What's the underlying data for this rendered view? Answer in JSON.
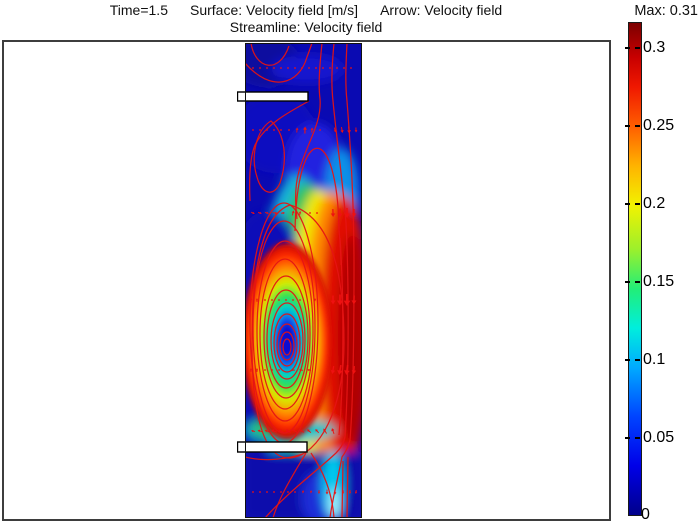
{
  "header": {
    "title_segments": [
      "Time=1.5",
      "Surface: Velocity field [m/s]",
      "Arrow: Velocity field"
    ],
    "title_line2": "Streamline: Velocity field",
    "max_label": "Max: 0.31"
  },
  "colorbar": {
    "labels": [
      "0.3",
      "0.25",
      "0.2",
      "0.15",
      "0.1",
      "0.05",
      "0"
    ],
    "min": 0,
    "max": 0.31,
    "colormap": "jet",
    "top_color": "#7c0000",
    "bottom_color": "#00008a"
  },
  "chart_data": {
    "type": "heatmap",
    "title": "Time=1.5  Surface: Velocity field [m/s]  Arrow: Velocity field  Streamline: Velocity field",
    "quantity": "Velocity field [m/s]",
    "time": 1.5,
    "max_value": 0.31,
    "value_range": [
      0,
      0.31
    ],
    "colorbar_ticks": [
      0,
      0.05,
      0.1,
      0.15,
      0.2,
      0.25,
      0.3
    ],
    "plot_layers": [
      "surface",
      "arrow",
      "streamline"
    ],
    "colormap": "jet",
    "streamline_color": "#e51414",
    "arrow_color": "#ee1111",
    "description": "Vertical channel with two left-wall baffles; jet flows down the right side between baffles reaching ~0.31 m/s (dark red); large counterclockwise recirculation vortex with low-velocity core left of the jet; slow dark-blue flow above top baffle and below bottom baffle.",
    "features": {
      "vortex_core_velocity": "~0 (dark blue core)",
      "jet_peak_velocity": "~0.31 m/s along right wall mid-section",
      "baffle_count": 2
    },
    "arrows": [
      [
        8,
        25,
        0,
        0
      ],
      [
        15,
        25,
        0,
        0
      ],
      [
        22,
        25,
        0,
        0
      ],
      [
        29,
        25,
        0,
        0
      ],
      [
        36,
        25,
        0,
        0
      ],
      [
        43,
        25,
        0,
        0
      ],
      [
        50,
        25,
        0,
        0
      ],
      [
        57,
        25,
        0,
        0
      ],
      [
        64,
        25,
        0,
        0
      ],
      [
        71,
        25,
        0,
        0
      ],
      [
        78,
        25,
        0,
        0
      ],
      [
        85,
        25,
        0,
        0
      ],
      [
        92,
        25,
        0,
        0
      ],
      [
        99,
        25,
        0,
        0
      ],
      [
        106,
        25,
        0,
        0
      ],
      [
        8,
        87,
        0,
        0
      ],
      [
        15,
        87,
        0,
        0
      ],
      [
        22,
        87,
        0,
        0
      ],
      [
        29,
        87,
        0,
        0
      ],
      [
        36,
        87,
        0,
        0
      ],
      [
        44,
        87,
        0,
        0
      ],
      [
        52,
        87,
        -85,
        5
      ],
      [
        60,
        87,
        -88,
        7
      ],
      [
        67,
        87,
        -85,
        5
      ],
      [
        75,
        87,
        0,
        0
      ],
      [
        90,
        87,
        75,
        5
      ],
      [
        97,
        87,
        80,
        6
      ],
      [
        104,
        87,
        85,
        7
      ],
      [
        111,
        87,
        88,
        5
      ],
      [
        8,
        170,
        25,
        4
      ],
      [
        15,
        170,
        20,
        4
      ],
      [
        22,
        170,
        15,
        4
      ],
      [
        30,
        170,
        10,
        5
      ],
      [
        38,
        170,
        -5,
        4
      ],
      [
        48,
        170,
        -75,
        5
      ],
      [
        55,
        170,
        -80,
        4
      ],
      [
        65,
        170,
        0,
        0
      ],
      [
        72,
        170,
        0,
        0
      ],
      [
        88,
        170,
        88,
        8
      ],
      [
        95,
        170,
        90,
        9
      ],
      [
        102,
        170,
        90,
        10
      ],
      [
        109,
        170,
        92,
        8
      ],
      [
        6,
        257,
        -90,
        5
      ],
      [
        12,
        257,
        -90,
        4
      ],
      [
        20,
        257,
        0,
        0
      ],
      [
        27,
        257,
        0,
        0
      ],
      [
        34,
        257,
        0,
        0
      ],
      [
        41,
        257,
        0,
        0
      ],
      [
        48,
        257,
        0,
        0
      ],
      [
        55,
        257,
        0,
        0
      ],
      [
        70,
        257,
        95,
        3
      ],
      [
        88,
        257,
        90,
        9
      ],
      [
        95,
        257,
        90,
        11
      ],
      [
        102,
        257,
        90,
        12
      ],
      [
        109,
        257,
        92,
        9
      ],
      [
        6,
        327,
        -90,
        4
      ],
      [
        12,
        327,
        -90,
        4
      ],
      [
        20,
        327,
        0,
        0
      ],
      [
        27,
        327,
        0,
        0
      ],
      [
        34,
        327,
        0,
        0
      ],
      [
        48,
        327,
        185,
        4
      ],
      [
        56,
        327,
        188,
        4
      ],
      [
        64,
        327,
        192,
        4
      ],
      [
        88,
        327,
        100,
        8
      ],
      [
        95,
        327,
        100,
        10
      ],
      [
        102,
        327,
        98,
        10
      ],
      [
        109,
        327,
        95,
        8
      ],
      [
        8,
        388,
        195,
        4
      ],
      [
        15,
        388,
        198,
        5
      ],
      [
        22,
        388,
        200,
        5
      ],
      [
        29,
        388,
        202,
        6
      ],
      [
        36,
        388,
        205,
        6
      ],
      [
        43,
        388,
        208,
        6
      ],
      [
        50,
        388,
        212,
        5
      ],
      [
        57,
        388,
        215,
        5
      ],
      [
        64,
        388,
        220,
        5
      ],
      [
        72,
        388,
        228,
        5
      ],
      [
        80,
        388,
        238,
        6
      ],
      [
        88,
        388,
        250,
        6
      ],
      [
        8,
        449,
        0,
        0
      ],
      [
        15,
        449,
        0,
        0
      ],
      [
        22,
        449,
        0,
        0
      ],
      [
        29,
        449,
        0,
        0
      ],
      [
        36,
        449,
        0,
        0
      ],
      [
        43,
        449,
        0,
        0
      ],
      [
        50,
        449,
        0,
        0
      ],
      [
        58,
        449,
        95,
        3
      ],
      [
        66,
        449,
        95,
        3
      ],
      [
        74,
        449,
        92,
        4
      ],
      [
        82,
        449,
        90,
        5
      ],
      [
        90,
        449,
        88,
        5
      ],
      [
        98,
        449,
        90,
        4
      ],
      [
        105,
        449,
        92,
        4
      ],
      [
        111,
        449,
        95,
        4
      ]
    ]
  }
}
